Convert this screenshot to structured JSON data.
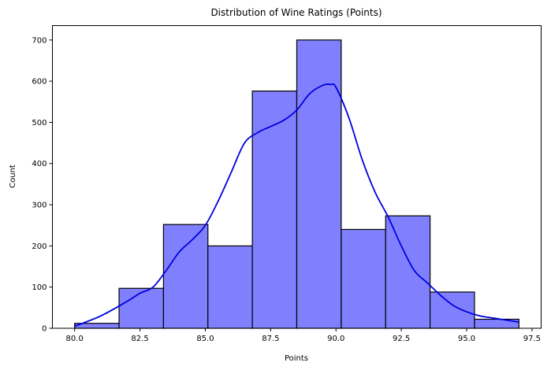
{
  "chart_data": {
    "type": "bar",
    "title": "Distribution of Wine Ratings (Points)",
    "xlabel": "Points",
    "ylabel": "Count",
    "xlim": [
      79.15,
      97.85
    ],
    "ylim": [
      0,
      735
    ],
    "grid": false,
    "legend": null,
    "bar_color": "#8080ff",
    "bar_edge_color": "#000000",
    "kde_color": "#0000dd",
    "x_ticks": [
      80.0,
      82.5,
      85.0,
      87.5,
      90.0,
      92.5,
      95.0,
      97.5
    ],
    "x_tick_labels": [
      "80.0",
      "82.5",
      "85.0",
      "87.5",
      "90.0",
      "92.5",
      "95.0",
      "97.5"
    ],
    "y_ticks": [
      0,
      100,
      200,
      300,
      400,
      500,
      600,
      700
    ],
    "y_tick_labels": [
      "0",
      "100",
      "200",
      "300",
      "400",
      "500",
      "600",
      "700"
    ],
    "bin_edges": [
      80.0,
      81.7,
      83.4,
      85.1,
      86.8,
      88.5,
      90.2,
      91.9,
      93.6,
      95.3,
      97.0
    ],
    "categories": [
      "80.0-81.7",
      "81.7-83.4",
      "83.4-85.1",
      "85.1-86.8",
      "86.8-88.5",
      "88.5-90.2",
      "90.2-91.9",
      "91.9-93.6",
      "93.6-95.3",
      "95.3-97.0"
    ],
    "values": [
      12,
      97,
      252,
      200,
      576,
      700,
      240,
      273,
      88,
      22
    ],
    "kde": {
      "x": [
        80.0,
        81.0,
        82.0,
        82.5,
        83.0,
        83.5,
        84.0,
        84.5,
        85.0,
        85.5,
        86.0,
        86.5,
        87.0,
        87.5,
        88.0,
        88.5,
        89.0,
        89.5,
        89.8,
        90.0,
        90.5,
        91.0,
        91.5,
        92.0,
        92.5,
        93.0,
        93.5,
        94.0,
        94.5,
        95.0,
        95.5,
        96.0,
        96.5,
        97.0
      ],
      "y": [
        5,
        30,
        65,
        85,
        100,
        140,
        185,
        215,
        250,
        310,
        380,
        450,
        475,
        490,
        505,
        530,
        570,
        590,
        592,
        585,
        510,
        410,
        330,
        270,
        200,
        140,
        110,
        80,
        55,
        40,
        30,
        25,
        20,
        15
      ]
    }
  }
}
